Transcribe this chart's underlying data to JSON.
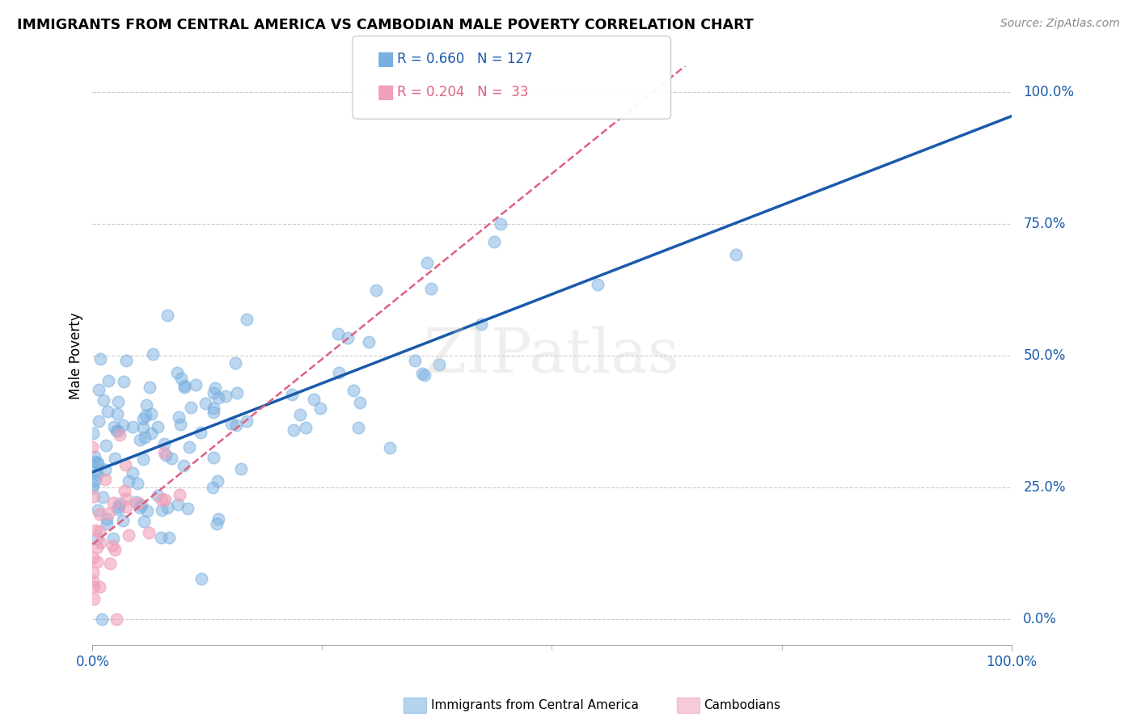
{
  "title": "IMMIGRANTS FROM CENTRAL AMERICA VS CAMBODIAN MALE POVERTY CORRELATION CHART",
  "source": "Source: ZipAtlas.com",
  "ylabel": "Male Poverty",
  "ytick_labels": [
    "0.0%",
    "25.0%",
    "50.0%",
    "75.0%",
    "100.0%"
  ],
  "ytick_values": [
    0.0,
    0.25,
    0.5,
    0.75,
    1.0
  ],
  "xtick_labels": [
    "0.0%",
    "100.0%"
  ],
  "xtick_values": [
    0.0,
    1.0
  ],
  "blue_R": 0.66,
  "blue_N": 127,
  "pink_R": 0.204,
  "pink_N": 33,
  "blue_color": "#7ab0e0",
  "pink_color": "#f0a0b8",
  "blue_line_color": "#1a5aab",
  "pink_line_color": "#e06080",
  "watermark": "ZIPatlas",
  "legend_label_blue": "Immigrants from Central America",
  "legend_label_pink": "Cambodians",
  "background_color": "#ffffff",
  "grid_color": "#cccccc",
  "axis_label_color": "#1a5aab",
  "title_color": "#000000",
  "source_color": "#888888"
}
